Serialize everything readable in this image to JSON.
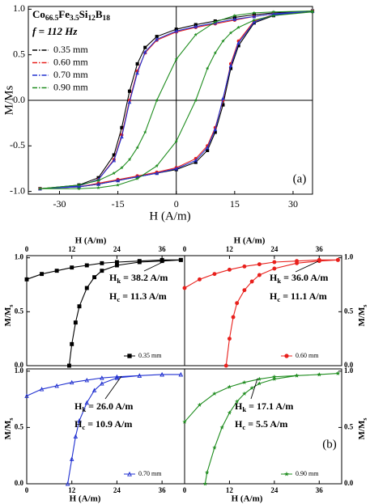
{
  "chart_data": [
    {
      "type": "line",
      "xlabel": "H (A/m)",
      "ylabel": "M/Ms",
      "panel_label": "(a)",
      "composition": [
        {
          "text": "Co",
          "sub": "66.5"
        },
        {
          "text": "Fe",
          "sub": "3.5"
        },
        {
          "text": "Si",
          "sub": "12"
        },
        {
          "text": "B",
          "sub": "18"
        }
      ],
      "frequency": "f = 112 Hz",
      "xlim": [
        -38,
        35
      ],
      "ylim": [
        -1.03,
        1.03
      ],
      "xticks": [
        -30,
        -15,
        0,
        15,
        30
      ],
      "yticks": [
        {
          "value": -1,
          "label": "-1.0"
        },
        -0.5,
        {
          "value": 0,
          "label": "0.0"
        },
        0.5,
        {
          "value": 1,
          "label": "1.0"
        }
      ],
      "zero_lines": true,
      "legend": "upper left",
      "x": [
        35,
        25,
        20,
        15,
        10,
        5,
        0,
        -5,
        -8,
        -10,
        -12,
        -14,
        -16,
        -20,
        -25,
        -35,
        -25,
        -20,
        -15,
        -10,
        -5,
        0,
        5,
        8,
        10,
        12,
        14,
        16,
        20,
        25,
        35
      ],
      "series": [
        {
          "name": "0.35 mm",
          "color": "#000000",
          "marker": "square",
          "values": [
            0.98,
            0.96,
            0.94,
            0.91,
            0.87,
            0.83,
            0.78,
            0.7,
            0.58,
            0.4,
            0.1,
            -0.3,
            -0.6,
            -0.85,
            -0.93,
            -0.97,
            -0.95,
            -0.92,
            -0.88,
            -0.84,
            -0.8,
            -0.76,
            -0.68,
            -0.55,
            -0.35,
            -0.05,
            0.35,
            0.6,
            0.85,
            0.93,
            0.98
          ]
        },
        {
          "name": "0.60 mm",
          "color": "#e8201c",
          "marker": "circle",
          "values": [
            0.98,
            0.95,
            0.92,
            0.88,
            0.84,
            0.8,
            0.75,
            0.66,
            0.52,
            0.32,
            0.0,
            -0.38,
            -0.65,
            -0.87,
            -0.94,
            -0.97,
            -0.95,
            -0.91,
            -0.87,
            -0.83,
            -0.79,
            -0.74,
            -0.64,
            -0.5,
            -0.3,
            0.0,
            0.4,
            0.65,
            0.87,
            0.94,
            0.98
          ]
        },
        {
          "name": "0.70 mm",
          "color": "#2030d0",
          "marker": "triangle",
          "values": [
            0.98,
            0.95,
            0.92,
            0.89,
            0.85,
            0.81,
            0.76,
            0.67,
            0.53,
            0.3,
            -0.02,
            -0.4,
            -0.66,
            -0.87,
            -0.94,
            -0.97,
            -0.95,
            -0.92,
            -0.88,
            -0.84,
            -0.8,
            -0.75,
            -0.66,
            -0.52,
            -0.32,
            0.02,
            0.38,
            0.63,
            0.86,
            0.94,
            0.98
          ]
        },
        {
          "name": "0.90 mm",
          "color": "#1e8c1e",
          "marker": "star",
          "values": [
            0.98,
            0.97,
            0.96,
            0.93,
            0.86,
            0.72,
            0.45,
            0.0,
            -0.35,
            -0.52,
            -0.65,
            -0.74,
            -0.8,
            -0.88,
            -0.93,
            -0.97,
            -0.97,
            -0.96,
            -0.93,
            -0.86,
            -0.72,
            -0.45,
            0.0,
            0.35,
            0.52,
            0.65,
            0.74,
            0.8,
            0.88,
            0.93,
            0.97
          ]
        }
      ]
    },
    {
      "type": "line",
      "xlabel": "H (A/m)",
      "ylabel": {
        "text": "M/M",
        "sub": "s"
      },
      "xlim": [
        0,
        42
      ],
      "ylim": [
        0,
        1.02
      ],
      "xticks": [
        0,
        12,
        24,
        36
      ],
      "yticks": [
        {
          "value": 0,
          "label": "0.0"
        },
        0.5,
        {
          "value": 1,
          "label": "1.0"
        }
      ],
      "legend": "lower right",
      "annotations": [
        {
          "symbol": "H",
          "sub": "k",
          "text": " = 38.2 A/m"
        },
        {
          "symbol": "H",
          "sub": "c",
          "text": " = 11.3 A/m"
        }
      ],
      "x": [
        0,
        4,
        8,
        12,
        16,
        20,
        24,
        30,
        36,
        41,
        null,
        11.3,
        12,
        13,
        14,
        16,
        18,
        20,
        24,
        30,
        36,
        41
      ],
      "series": [
        {
          "name": "0.35 mm",
          "color": "#000000",
          "marker": "square",
          "values": [
            0.8,
            0.85,
            0.88,
            0.91,
            0.93,
            0.95,
            0.96,
            0.97,
            0.98,
            0.98,
            null,
            0,
            0.2,
            0.4,
            0.55,
            0.72,
            0.82,
            0.88,
            0.93,
            0.96,
            0.97,
            0.98
          ]
        }
      ]
    },
    {
      "type": "line",
      "xlabel": "H (A/m)",
      "ylabel": {
        "text": "M/M",
        "sub": "s"
      },
      "xlim": [
        0,
        42
      ],
      "ylim": [
        0,
        1.02
      ],
      "xticks": [
        0,
        12,
        24,
        36
      ],
      "yticks": [
        {
          "value": 0,
          "label": "0.0"
        },
        0.5,
        {
          "value": 1,
          "label": "1.0"
        }
      ],
      "legend": "lower right",
      "annotations": [
        {
          "symbol": "H",
          "sub": "k",
          "text": " = 36.0 A/m"
        },
        {
          "symbol": "H",
          "sub": "c",
          "text": " = 11.1 A/m"
        }
      ],
      "x": [
        0,
        4,
        8,
        12,
        16,
        20,
        24,
        30,
        36,
        41,
        null,
        11.1,
        12,
        13,
        14,
        16,
        18,
        20,
        24,
        30,
        36,
        41
      ],
      "series": [
        {
          "name": "0.60 mm",
          "color": "#e8201c",
          "marker": "circle",
          "values": [
            0.72,
            0.8,
            0.85,
            0.89,
            0.92,
            0.94,
            0.96,
            0.97,
            0.98,
            0.98,
            null,
            0,
            0.25,
            0.45,
            0.58,
            0.7,
            0.78,
            0.84,
            0.9,
            0.95,
            0.97,
            0.98
          ]
        }
      ]
    },
    {
      "type": "line",
      "xlabel": "H (A/m)",
      "ylabel": {
        "text": "M/M",
        "sub": "s"
      },
      "xlim": [
        0,
        42
      ],
      "ylim": [
        0,
        1.02
      ],
      "xticks": [
        0,
        12,
        24,
        36
      ],
      "yticks": [
        {
          "value": 0,
          "label": "0.0"
        },
        0.5,
        {
          "value": 1,
          "label": "1.0"
        }
      ],
      "legend": "lower right",
      "annotations": [
        {
          "symbol": "H",
          "sub": "k",
          "text": " = 26.0 A/m"
        },
        {
          "symbol": "H",
          "sub": "c",
          "text": " = 10.9 A/m"
        }
      ],
      "x": [
        0,
        4,
        8,
        12,
        16,
        20,
        24,
        30,
        36,
        41,
        null,
        10.9,
        12,
        13,
        14,
        16,
        18,
        20,
        24,
        30,
        36,
        41
      ],
      "series": [
        {
          "name": "0.70 mm",
          "color": "#2030d0",
          "marker": "triangle",
          "values": [
            0.78,
            0.84,
            0.87,
            0.9,
            0.92,
            0.94,
            0.95,
            0.96,
            0.97,
            0.97,
            null,
            0,
            0.22,
            0.42,
            0.56,
            0.72,
            0.83,
            0.89,
            0.94,
            0.96,
            0.97,
            0.97
          ]
        }
      ]
    },
    {
      "type": "line",
      "xlabel": "H (A/m)",
      "ylabel": {
        "text": "M/M",
        "sub": "s"
      },
      "panel_label": "(b)",
      "xlim": [
        0,
        42
      ],
      "ylim": [
        0,
        1.02
      ],
      "xticks": [
        0,
        12,
        24,
        36
      ],
      "yticks": [
        {
          "value": 0,
          "label": "0.0"
        },
        0.5,
        {
          "value": 1,
          "label": "1.0"
        }
      ],
      "legend": "lower right",
      "annotations": [
        {
          "symbol": "H",
          "sub": "k",
          "text": " = 17.1 A/m"
        },
        {
          "symbol": "H",
          "sub": "c",
          "text": " = 5.5 A/m"
        }
      ],
      "x": [
        0,
        4,
        8,
        12,
        16,
        20,
        24,
        30,
        36,
        41,
        null,
        5.5,
        6,
        8,
        10,
        12,
        14,
        16,
        18,
        20,
        24,
        30,
        36,
        41
      ],
      "series": [
        {
          "name": "0.90 mm",
          "color": "#1e8c1e",
          "marker": "star",
          "values": [
            0.55,
            0.7,
            0.8,
            0.86,
            0.9,
            0.93,
            0.95,
            0.96,
            0.97,
            0.98,
            null,
            0,
            0.1,
            0.32,
            0.5,
            0.63,
            0.73,
            0.8,
            0.85,
            0.89,
            0.93,
            0.96,
            0.97,
            0.98
          ]
        }
      ]
    }
  ]
}
